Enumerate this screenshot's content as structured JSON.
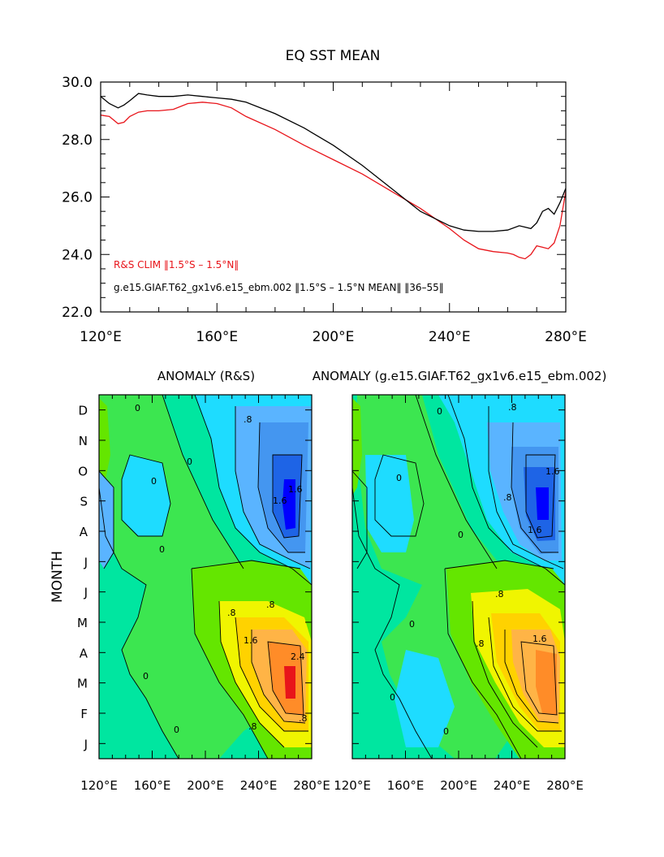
{
  "chart_data": [
    {
      "type": "line",
      "title": "EQ SST MEAN",
      "xlabel": "",
      "ylabel": "",
      "xlim": [
        120,
        280
      ],
      "ylim": [
        22,
        30
      ],
      "xticks": [
        {
          "value": 120,
          "label": "120°E"
        },
        {
          "value": 160,
          "label": "160°E"
        },
        {
          "value": 200,
          "label": "200°E"
        },
        {
          "value": 240,
          "label": "240°E"
        },
        {
          "value": 280,
          "label": "280°E"
        }
      ],
      "yticks": [
        {
          "value": 22,
          "label": "22.0"
        },
        {
          "value": 24,
          "label": "24.0"
        },
        {
          "value": 26,
          "label": "26.0"
        },
        {
          "value": 28,
          "label": "28.0"
        },
        {
          "value": 30,
          "label": "30.0"
        }
      ],
      "series": [
        {
          "name": "R&S CLIM ‖1.5°S – 1.5°N‖",
          "color": "#e8141a",
          "x": [
            120,
            123,
            126,
            128,
            130,
            133,
            136,
            140,
            145,
            150,
            155,
            160,
            165,
            170,
            180,
            190,
            200,
            210,
            220,
            230,
            240,
            245,
            250,
            255,
            260,
            262,
            264,
            266,
            268,
            270,
            272,
            274,
            276,
            278,
            280
          ],
          "y": [
            28.85,
            28.8,
            28.55,
            28.6,
            28.8,
            28.95,
            29.0,
            29.0,
            29.05,
            29.25,
            29.3,
            29.25,
            29.1,
            28.8,
            28.35,
            27.8,
            27.3,
            26.8,
            26.2,
            25.6,
            24.9,
            24.5,
            24.2,
            24.1,
            24.05,
            24.0,
            23.9,
            23.85,
            24.0,
            24.3,
            24.25,
            24.2,
            24.4,
            25.0,
            26.2
          ]
        },
        {
          "name": "g.e15.GIAF.T62_gx1v6.e15_ebm.002 ‖1.5°S – 1.5°N MEAN‖ ‖36–55‖",
          "color": "#000000",
          "x": [
            120,
            123,
            126,
            128,
            130,
            133,
            136,
            140,
            145,
            150,
            155,
            160,
            165,
            170,
            180,
            190,
            200,
            210,
            220,
            230,
            240,
            245,
            250,
            255,
            260,
            264,
            266,
            268,
            270,
            272,
            274,
            276,
            278,
            280
          ],
          "y": [
            29.5,
            29.25,
            29.1,
            29.2,
            29.35,
            29.6,
            29.55,
            29.5,
            29.5,
            29.55,
            29.5,
            29.45,
            29.4,
            29.3,
            28.9,
            28.4,
            27.8,
            27.1,
            26.3,
            25.5,
            25.0,
            24.85,
            24.8,
            24.8,
            24.85,
            25.0,
            24.95,
            24.9,
            25.1,
            25.5,
            25.6,
            25.4,
            25.8,
            26.3
          ]
        }
      ],
      "legend": [
        {
          "text": "R&S CLIM ‖1.5°S – 1.5°N‖",
          "color": "#e8141a"
        },
        {
          "text": "g.e15.GIAF.T62_gx1v6.e15_ebm.002 ‖1.5°S – 1.5°N MEAN‖ ‖36–55‖",
          "color": "#000000"
        }
      ],
      "legend_position": "bottom-left"
    },
    {
      "type": "heatmap",
      "title": "ANOMALY (R&S)",
      "ylabel": "MONTH",
      "xlim": [
        120,
        280
      ],
      "xticks": [
        "120°E",
        "160°E",
        "200°E",
        "240°E",
        "280°E"
      ],
      "yticks": [
        "J",
        "F",
        "M",
        "A",
        "M",
        "J",
        "J",
        "A",
        "S",
        "O",
        "N",
        "D"
      ],
      "contour_labels": [
        ".8",
        "1.6",
        "1.6",
        "0",
        "0",
        "0",
        "0",
        ".8",
        "1.6",
        "2.4",
        ".8",
        "0",
        "0",
        ".8",
        ".8"
      ],
      "cold_center": {
        "lon": 262,
        "month_index": 8,
        "value": -2.4
      },
      "warm_center": {
        "lon": 265,
        "month_index": 2,
        "value": 2.4
      }
    },
    {
      "type": "heatmap",
      "title": "ANOMALY (g.e15.GIAF.T62_gx1v6.e15_ebm.002)",
      "xlim": [
        120,
        280
      ],
      "xticks": [
        "120°E",
        "160°E",
        "200°E",
        "240°E",
        "280°E"
      ],
      "yticks": [],
      "contour_labels": [
        ".8",
        "1.6",
        "1.6",
        ".8",
        "0",
        "0",
        "0",
        "0",
        ".8",
        "1.6",
        ".8",
        "0",
        "0"
      ],
      "cold_center": {
        "lon": 267,
        "month_index": 8,
        "value": -2.0
      },
      "warm_center": {
        "lon": 268,
        "month_index": 2,
        "value": 2.0
      }
    }
  ],
  "colors": {
    "red": "#e8141a",
    "black": "#000000",
    "palette": [
      "#0000ff",
      "#1e64e6",
      "#4496f0",
      "#5ab4ff",
      "#1edcff",
      "#00f5d2",
      "#00e6a0",
      "#3ce650",
      "#64e600",
      "#f0f500",
      "#ffd200",
      "#ffb446",
      "#ff8c28",
      "#e8141a"
    ]
  }
}
